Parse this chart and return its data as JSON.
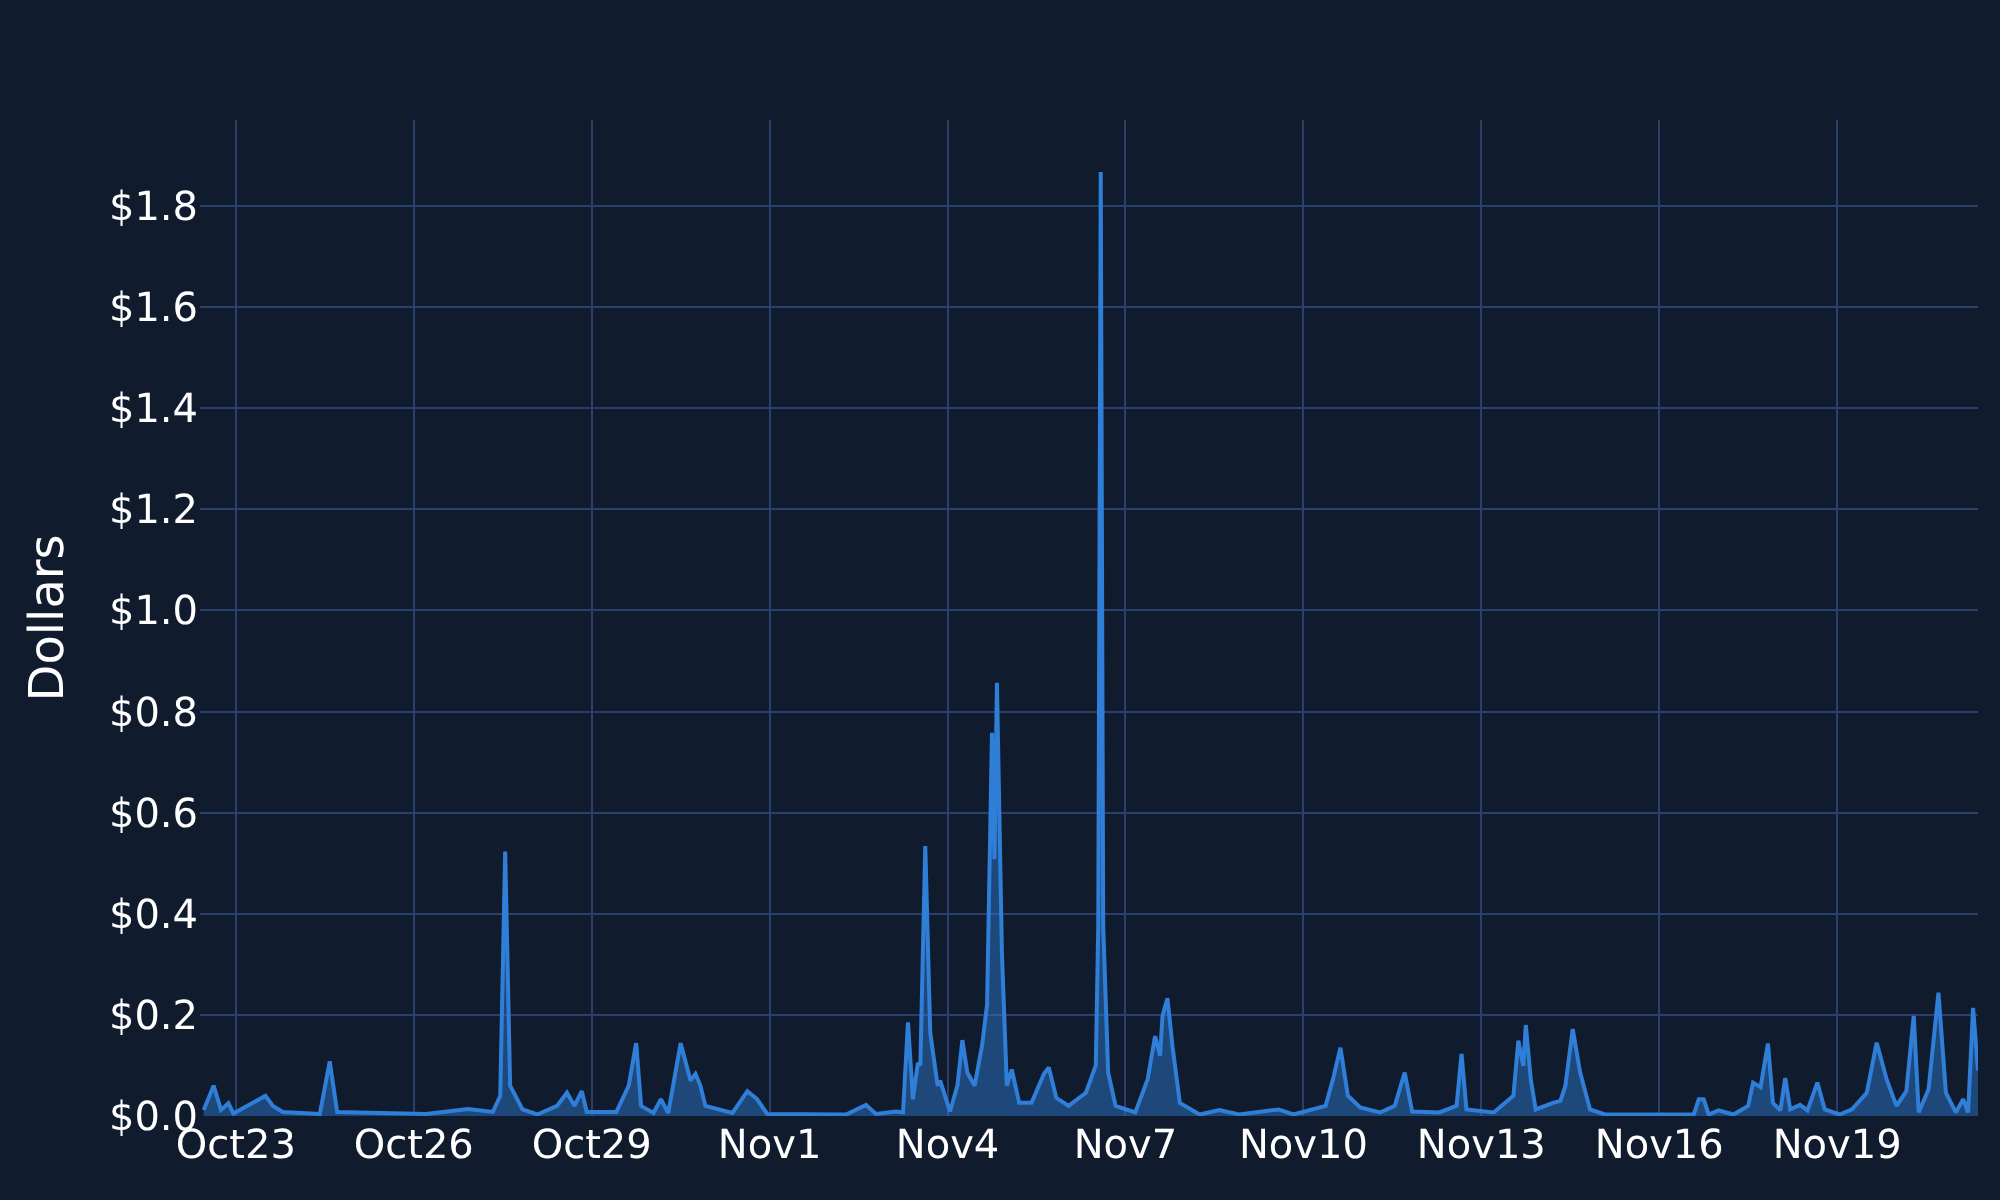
{
  "chart_data": {
    "type": "area",
    "ylabel": "Dollars",
    "x": [
      "--10-22T11:00",
      "--10-22T15:00",
      "--10-22T18:00",
      "--10-22T21:00",
      "--10-22T23:00",
      "--10-23T12:00",
      "--10-23T15:00",
      "--10-23T19:00",
      "--10-24T10:00",
      "--10-24T14:00",
      "--10-24T17:00",
      "--10-26T05:00",
      "--10-26T22:00",
      "--10-27T08:00",
      "--10-27T11:00",
      "--10-27T13:00",
      "--10-27T15:00",
      "--10-27T20:00",
      "--10-28T02:00",
      "--10-28T10:00",
      "--10-28T14:00",
      "--10-28T17:00",
      "--10-28T20:00",
      "--10-28T22:00",
      "--10-29T10:00",
      "--10-29T15:00",
      "--10-29T18:00",
      "--10-29T20:00",
      "--10-30T01:00",
      "--10-30T04:00",
      "--10-30T07:00",
      "--10-30T12:00",
      "--10-30T16:00",
      "--10-30T18:00",
      "--10-30T20:00",
      "--10-30T22:00",
      "--10-31T09:00",
      "--10-31T15:00",
      "--10-31T19:00",
      "--10-31T23:00",
      "--11-02T07:00",
      "--11-02T15:00",
      "--11-02T19:00",
      "--11-03T03:00",
      "--11-03T06:00",
      "--11-03T08:00",
      "--11-03T10:00",
      "--11-03T12:00",
      "--11-03T13:00",
      "--11-03T15:00",
      "--11-03T17:00",
      "--11-03T20:00",
      "--11-03T21:00",
      "--11-04T01:00",
      "--11-04T04:00",
      "--11-04T06:00",
      "--11-04T08:00",
      "--11-04T11:00",
      "--11-04T14:00",
      "--11-04T16:00",
      "--11-04T18:00",
      "--11-04T19:00",
      "--11-04T20:00",
      "--11-04T22:00",
      "--11-05T00:00",
      "--11-05T02:00",
      "--11-05T05:00",
      "--11-05T10:00",
      "--11-05T15:00",
      "--11-05T17:00",
      "--11-05T20:00",
      "--11-06T01:00",
      "--11-06T08:00",
      "--11-06T12:00",
      "--11-06T13:00",
      "--11-06T14:00",
      "--11-06T15:00",
      "--11-06T17:00",
      "--11-06T20:00",
      "--11-07T04:00",
      "--11-07T09:00",
      "--11-07T12:00",
      "--11-07T14:00",
      "--11-07T15:00",
      "--11-07T17:00",
      "--11-07T19:00",
      "--11-07T22:00",
      "--11-08T06:00",
      "--11-08T14:00",
      "--11-08T22:00",
      "--11-09T14:00",
      "--11-09T20:00",
      "--11-10T09:00",
      "--11-10T12:00",
      "--11-10T15:00",
      "--11-10T18:00",
      "--11-10T23:00",
      "--11-11T07:00",
      "--11-11T13:00",
      "--11-11T17:00",
      "--11-11T20:00",
      "--11-12T07:00",
      "--11-12T14:00",
      "--11-12T16:00",
      "--11-12T18:00",
      "--11-13T05:00",
      "--11-13T13:00",
      "--11-13T15:00",
      "--11-13T17:00",
      "--11-13T18:00",
      "--11-13T20:00",
      "--11-13T22:00",
      "--11-14T05:00",
      "--11-14T08:00",
      "--11-14T10:00",
      "--11-14T13:00",
      "--11-14T16:00",
      "--11-14T20:00",
      "--11-15T02:00",
      "--11-16T14:00",
      "--11-16T16:00",
      "--11-16T18:00",
      "--11-16T20:00",
      "--11-17T00:00",
      "--11-17T06:00",
      "--11-17T12:00",
      "--11-17T14:00",
      "--11-17T17:00",
      "--11-17T20:00",
      "--11-17T22:00",
      "--11-18T01:00",
      "--11-18T03:00",
      "--11-18T05:00",
      "--11-18T09:00",
      "--11-18T12:00",
      "--11-18T16:00",
      "--11-18T19:00",
      "--11-19T01:00",
      "--11-19T06:00",
      "--11-19T12:00",
      "--11-19T16:00",
      "--11-19T20:00",
      "--11-20T00:00",
      "--11-20T04:00",
      "--11-20T07:00",
      "--11-20T09:00",
      "--11-20T13:00",
      "--11-20T17:00",
      "--11-20T20:00",
      "--11-21T00:00",
      "--11-21T03:00",
      "--11-21T05:00",
      "--11-21T07:00",
      "--11-21T09:00"
    ],
    "series": [
      {
        "color": "#2f7fd8",
        "values": [
          0.012,
          0.06,
          0.012,
          0.025,
          0.005,
          0.04,
          0.02,
          0.008,
          0.004,
          0.108,
          0.008,
          0.004,
          0.014,
          0.008,
          0.04,
          0.523,
          0.06,
          0.013,
          0.003,
          0.02,
          0.046,
          0.02,
          0.049,
          0.008,
          0.008,
          0.06,
          0.144,
          0.02,
          0.006,
          0.033,
          0.006,
          0.144,
          0.07,
          0.083,
          0.06,
          0.02,
          0.006,
          0.049,
          0.033,
          0.004,
          0.003,
          0.022,
          0.004,
          0.009,
          0.007,
          0.185,
          0.033,
          0.105,
          0.1,
          0.534,
          0.165,
          0.06,
          0.07,
          0.009,
          0.06,
          0.15,
          0.086,
          0.06,
          0.14,
          0.22,
          0.758,
          0.508,
          0.857,
          0.323,
          0.06,
          0.092,
          0.026,
          0.026,
          0.083,
          0.096,
          0.036,
          0.02,
          0.046,
          0.1,
          0.376,
          1.867,
          0.376,
          0.086,
          0.02,
          0.007,
          0.073,
          0.158,
          0.119,
          0.198,
          0.233,
          0.139,
          0.026,
          0.003,
          0.012,
          0.003,
          0.013,
          0.003,
          0.02,
          0.073,
          0.135,
          0.04,
          0.017,
          0.007,
          0.02,
          0.086,
          0.009,
          0.007,
          0.02,
          0.123,
          0.013,
          0.007,
          0.04,
          0.149,
          0.099,
          0.18,
          0.073,
          0.013,
          0.026,
          0.03,
          0.059,
          0.172,
          0.086,
          0.013,
          0.003,
          0.003,
          0.033,
          0.033,
          0.003,
          0.011,
          0.003,
          0.02,
          0.066,
          0.057,
          0.143,
          0.026,
          0.011,
          0.075,
          0.013,
          0.022,
          0.011,
          0.066,
          0.013,
          0.003,
          0.013,
          0.046,
          0.145,
          0.073,
          0.02,
          0.049,
          0.198,
          0.007,
          0.053,
          0.244,
          0.046,
          0.007,
          0.033,
          0.007,
          0.214,
          0.09
        ]
      }
    ],
    "xlim": [
      "--10-22T09:30",
      "--11-21T09:00"
    ],
    "xticks": [
      {
        "value": "--10-23",
        "label": "Oct23"
      },
      {
        "value": "--10-26",
        "label": "Oct26"
      },
      {
        "value": "--10-29",
        "label": "Oct29"
      },
      {
        "value": "--11-01",
        "label": "Nov1"
      },
      {
        "value": "--11-04",
        "label": "Nov4"
      },
      {
        "value": "--11-07",
        "label": "Nov7"
      },
      {
        "value": "--11-10",
        "label": "Nov10"
      },
      {
        "value": "--11-13",
        "label": "Nov13"
      },
      {
        "value": "--11-16",
        "label": "Nov16"
      },
      {
        "value": "--11-19",
        "label": "Nov19"
      }
    ],
    "ylim": [
      0,
      1.97
    ],
    "yticks": [
      {
        "value": 0,
        "label": "$0.0"
      },
      {
        "value": 0.2,
        "label": "$0.2"
      },
      {
        "value": 0.4,
        "label": "$0.4"
      },
      {
        "value": 0.6,
        "label": "$0.6"
      },
      {
        "value": 0.8,
        "label": "$0.8"
      },
      {
        "value": 1.0,
        "label": "$1.0"
      },
      {
        "value": 1.2,
        "label": "$1.2"
      },
      {
        "value": 1.4,
        "label": "$1.4"
      },
      {
        "value": 1.6,
        "label": "$1.6"
      },
      {
        "value": 1.8,
        "label": "$1.8"
      }
    ],
    "grid": true
  }
}
